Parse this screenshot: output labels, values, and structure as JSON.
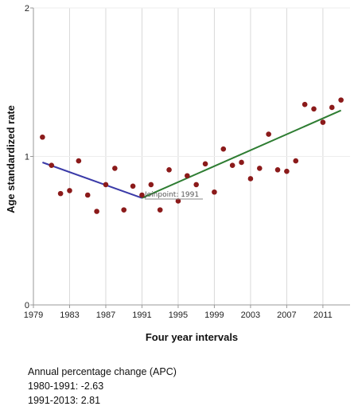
{
  "chart_data": {
    "type": "scatter",
    "xlabel": "Four year intervals",
    "ylabel": "Age standardized rate",
    "xlim": [
      1979,
      2014
    ],
    "ylim": [
      0,
      2
    ],
    "x_ticks": [
      1979,
      1983,
      1987,
      1991,
      1995,
      1999,
      2003,
      2007,
      2011
    ],
    "y_ticks": [
      0,
      1,
      2
    ],
    "grid": "vertical",
    "colors": {
      "points": "#8b1a1a",
      "segment1": "#3a3aa8",
      "segment2": "#2e7d32",
      "grid": "#d9d9d9"
    },
    "observed": {
      "x": [
        1980,
        1981,
        1982,
        1983,
        1984,
        1985,
        1986,
        1987,
        1988,
        1989,
        1990,
        1991,
        1992,
        1993,
        1994,
        1995,
        1996,
        1997,
        1998,
        1999,
        2000,
        2001,
        2002,
        2003,
        2004,
        2005,
        2006,
        2007,
        2008,
        2009,
        2010,
        2011,
        2012,
        2013
      ],
      "y": [
        1.13,
        0.94,
        0.75,
        0.77,
        0.97,
        0.74,
        0.63,
        0.81,
        0.92,
        0.64,
        0.8,
        0.74,
        0.81,
        0.64,
        0.91,
        0.7,
        0.87,
        0.81,
        0.95,
        0.76,
        1.05,
        0.94,
        0.96,
        0.85,
        0.92,
        1.15,
        0.91,
        0.9,
        0.97,
        1.35,
        1.32,
        1.23,
        1.33,
        1.38
      ]
    },
    "joinpoint_label": "Joinpoint: 1991",
    "fitted_segments": [
      {
        "x": [
          1980,
          1991
        ],
        "y": [
          0.96,
          0.72
        ]
      },
      {
        "x": [
          1991,
          2013
        ],
        "y": [
          0.72,
          1.31
        ]
      }
    ]
  },
  "apc": {
    "title": "Annual percentage change (APC)",
    "line1": "1980-1991: -2.63",
    "line2": "1991-2013: 2.81"
  }
}
